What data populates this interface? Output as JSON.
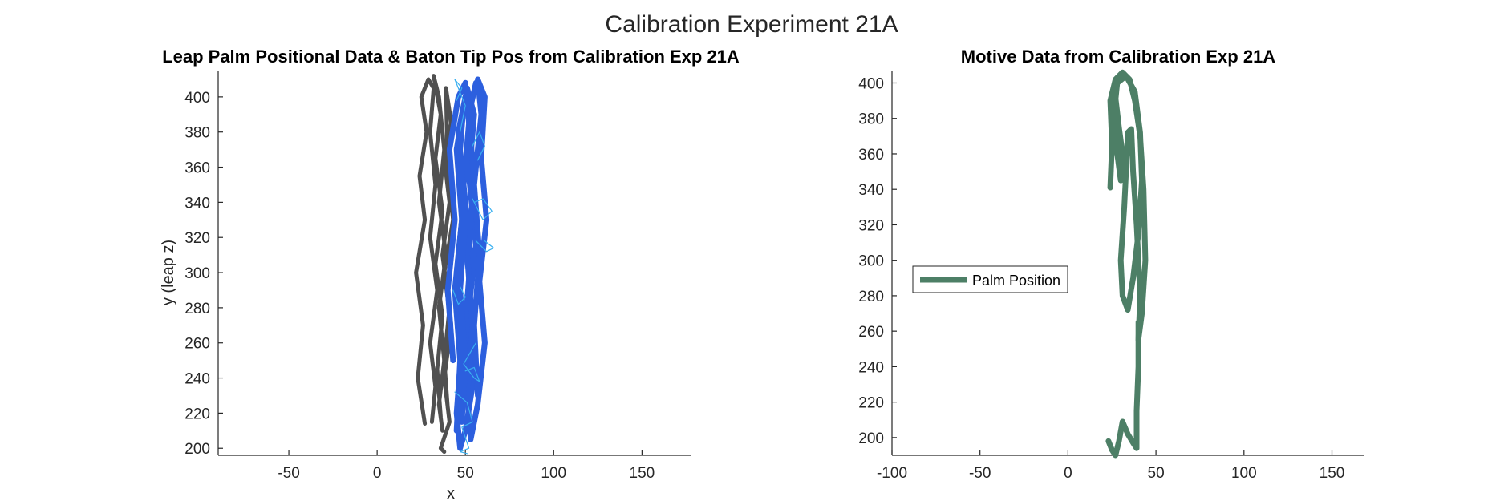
{
  "figure": {
    "title": "Calibration Experiment 21A"
  },
  "chart_data": [
    {
      "type": "line",
      "title": "Leap Palm Positional Data & Baton Tip Pos from Calibration Exp 21A",
      "xlabel": "x",
      "ylabel": "y (leap z)",
      "xlim": [
        -90,
        178
      ],
      "ylim": [
        196,
        415
      ],
      "xticks": [
        -50,
        0,
        50,
        100,
        150
      ],
      "yticks": [
        200,
        220,
        240,
        260,
        280,
        300,
        320,
        340,
        360,
        380,
        400
      ],
      "legend": null,
      "series": [
        {
          "color": "#505050",
          "linewidth": 5,
          "strokes": [
            [
              [
                27,
                214
              ],
              [
                23,
                240
              ],
              [
                26,
                270
              ],
              [
                22,
                300
              ],
              [
                27,
                330
              ],
              [
                24,
                355
              ],
              [
                28,
                380
              ],
              [
                25,
                400
              ],
              [
                29,
                410
              ],
              [
                32,
                405
              ],
              [
                30,
                380
              ],
              [
                33,
                350
              ],
              [
                30,
                320
              ],
              [
                34,
                290
              ],
              [
                30,
                260
              ],
              [
                33,
                235
              ],
              [
                31,
                215
              ]
            ],
            [
              [
                36,
                218
              ],
              [
                34,
                245
              ],
              [
                37,
                275
              ],
              [
                33,
                305
              ],
              [
                37,
                335
              ],
              [
                33,
                365
              ],
              [
                36,
                390
              ],
              [
                32,
                412
              ],
              [
                35,
                400
              ],
              [
                38,
                370
              ],
              [
                35,
                340
              ],
              [
                39,
                310
              ],
              [
                35,
                280
              ],
              [
                38,
                250
              ],
              [
                35,
                225
              ],
              [
                37,
                210
              ]
            ],
            [
              [
                40,
                223
              ],
              [
                38,
                250
              ],
              [
                41,
                280
              ],
              [
                37,
                310
              ],
              [
                41,
                340
              ],
              [
                38,
                365
              ],
              [
                42,
                385
              ],
              [
                39,
                405
              ],
              [
                40,
                360
              ],
              [
                43,
                330
              ],
              [
                38,
                300
              ],
              [
                42,
                270
              ],
              [
                38,
                240
              ],
              [
                41,
                215
              ],
              [
                36,
                200
              ],
              [
                38,
                198
              ]
            ]
          ]
        },
        {
          "color": "#2c5fde",
          "linewidth": 7,
          "strokes": [
            [
              [
                43,
                250
              ],
              [
                40,
                290
              ],
              [
                44,
                330
              ],
              [
                41,
                370
              ],
              [
                46,
                400
              ],
              [
                50,
                408
              ],
              [
                52,
                385
              ],
              [
                49,
                350
              ],
              [
                53,
                310
              ],
              [
                50,
                270
              ],
              [
                54,
                235
              ],
              [
                50,
                210
              ],
              [
                47,
                200
              ],
              [
                45,
                220
              ],
              [
                48,
                260
              ],
              [
                45,
                300
              ],
              [
                49,
                340
              ],
              [
                46,
                380
              ],
              [
                51,
                405
              ],
              [
                55,
                390
              ],
              [
                52,
                355
              ],
              [
                56,
                315
              ],
              [
                52,
                280
              ],
              [
                55,
                245
              ],
              [
                51,
                215
              ]
            ],
            [
              [
                57,
                230
              ],
              [
                55,
                270
              ],
              [
                58,
                310
              ],
              [
                55,
                350
              ],
              [
                59,
                390
              ],
              [
                57,
                410
              ],
              [
                61,
                400
              ],
              [
                59,
                365
              ],
              [
                62,
                330
              ],
              [
                58,
                295
              ],
              [
                61,
                260
              ],
              [
                57,
                225
              ],
              [
                53,
                205
              ],
              [
                51,
                230
              ],
              [
                54,
                270
              ],
              [
                51,
                310
              ],
              [
                55,
                350
              ],
              [
                52,
                390
              ],
              [
                56,
                408
              ]
            ],
            [
              [
                45,
                210
              ],
              [
                47,
                250
              ],
              [
                44,
                290
              ],
              [
                48,
                330
              ],
              [
                45,
                370
              ],
              [
                49,
                395
              ],
              [
                47,
                370
              ],
              [
                50,
                330
              ],
              [
                47,
                290
              ],
              [
                50,
                250
              ],
              [
                48,
                215
              ]
            ]
          ]
        },
        {
          "color": "#3ab0f0",
          "linewidth": 1.2,
          "strokes": [
            [
              [
                45,
                398
              ],
              [
                48,
                405
              ],
              [
                44,
                410
              ],
              [
                50,
                395
              ],
              [
                47,
                380
              ]
            ],
            [
              [
                54,
                342
              ],
              [
                60,
                330
              ],
              [
                65,
                335
              ],
              [
                60,
                342
              ],
              [
                55,
                340
              ]
            ],
            [
              [
                56,
                318
              ],
              [
                62,
                312
              ],
              [
                66,
                314
              ],
              [
                61,
                318
              ]
            ],
            [
              [
                43,
                290
              ],
              [
                46,
                282
              ],
              [
                50,
                286
              ],
              [
                47,
                292
              ]
            ],
            [
              [
                56,
                260
              ],
              [
                49,
                248
              ],
              [
                55,
                240
              ],
              [
                58,
                238
              ],
              [
                55,
                246
              ],
              [
                50,
                244
              ]
            ],
            [
              [
                44,
                232
              ],
              [
                51,
                226
              ],
              [
                54,
                215
              ],
              [
                48,
                212
              ],
              [
                52,
                200
              ],
              [
                47,
                198
              ],
              [
                51,
                197
              ]
            ],
            [
              [
                54,
                372
              ],
              [
                58,
                380
              ],
              [
                61,
                372
              ],
              [
                57,
                364
              ]
            ]
          ]
        }
      ]
    },
    {
      "type": "line",
      "title": "Motive Data from Calibration Exp 21A",
      "xlabel": "",
      "ylabel": "",
      "xlim": [
        -100,
        168
      ],
      "ylim": [
        190,
        407
      ],
      "xticks": [
        -100,
        -50,
        0,
        50,
        100,
        150
      ],
      "yticks": [
        200,
        220,
        240,
        260,
        280,
        300,
        320,
        340,
        360,
        380,
        400
      ],
      "legend": {
        "location": "middle-left",
        "entries": [
          "Palm Position"
        ]
      },
      "series": [
        {
          "name": "Palm Position",
          "color": "#4d7f66",
          "linewidth": 7,
          "strokes": [
            [
              [
                24,
                341
              ],
              [
                25,
                365
              ],
              [
                24,
                390
              ],
              [
                27,
                402
              ],
              [
                31,
                406
              ],
              [
                35,
                402
              ],
              [
                38,
                390
              ],
              [
                41,
                370
              ],
              [
                43,
                340
              ],
              [
                44,
                300
              ],
              [
                42,
                270
              ],
              [
                40,
                255
              ],
              [
                41,
                280
              ],
              [
                39,
                320
              ],
              [
                37,
                350
              ],
              [
                36,
                374
              ],
              [
                34,
                372
              ],
              [
                33,
                350
              ],
              [
                32,
                330
              ],
              [
                30,
                300
              ],
              [
                31,
                280
              ],
              [
                34,
                272
              ],
              [
                37,
                290
              ],
              [
                40,
                315
              ],
              [
                42,
                345
              ],
              [
                41,
                372
              ],
              [
                38,
                395
              ],
              [
                33,
                404
              ],
              [
                28,
                400
              ],
              [
                26,
                380
              ],
              [
                28,
                360
              ],
              [
                30,
                345
              ],
              [
                31,
                360
              ],
              [
                29,
                375
              ],
              [
                27,
                392
              ]
            ],
            [
              [
                23,
                198
              ],
              [
                25,
                193
              ],
              [
                27,
                190
              ],
              [
                29,
                198
              ],
              [
                31,
                209
              ],
              [
                34,
                202
              ],
              [
                37,
                197
              ],
              [
                39,
                194
              ],
              [
                39,
                215
              ],
              [
                40,
                240
              ],
              [
                40,
                265
              ]
            ]
          ]
        }
      ]
    }
  ]
}
